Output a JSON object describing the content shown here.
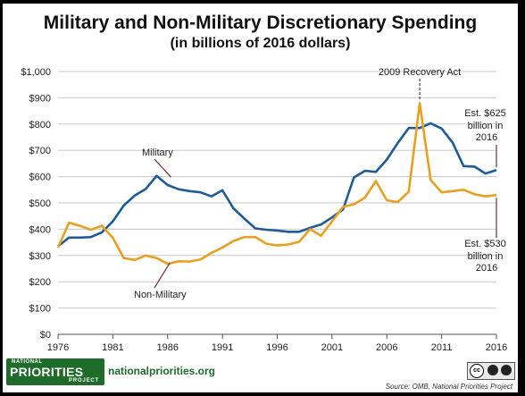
{
  "title": "Military and Non-Military Discretionary Spending",
  "subtitle": "(in billions of 2016 dollars)",
  "annotations": {
    "recovery_act": "2009 Recovery Act",
    "military_label": "Military",
    "nonmilitary_label": "Non-Military",
    "military_est": [
      "Est. $625",
      "billion in",
      "2016"
    ],
    "nonmilitary_est": [
      "Est. $530",
      "billion in",
      "2016"
    ]
  },
  "footer": {
    "logo_top": "NATIONAL",
    "logo_main": "PRIORITIES",
    "logo_bottom": "PROJECT",
    "site": "nationalpriorities.org",
    "license": "cc",
    "source": "Source: OMB, National Priorities Project"
  },
  "colors": {
    "military": "#1f5b99",
    "nonmilitary": "#e8a020",
    "grid": "#c8c8c8",
    "logo": "#1f6b2a"
  },
  "chart_data": {
    "type": "line",
    "title": "Military and Non-Military Discretionary Spending",
    "subtitle": "(in billions of 2016 dollars)",
    "xlim": [
      1976,
      2016
    ],
    "ylim": [
      0,
      1000
    ],
    "x_ticks": [
      1976,
      1981,
      1986,
      1991,
      1996,
      2001,
      2006,
      2011,
      2016
    ],
    "y_ticks": [
      0,
      100,
      200,
      300,
      400,
      500,
      600,
      700,
      800,
      900,
      1000
    ],
    "y_tick_labels": [
      "$0",
      "$100",
      "$200",
      "$300",
      "$400",
      "$500",
      "$600",
      "$700",
      "$800",
      "$900",
      "$1,000"
    ],
    "grid": "horizontal",
    "x": [
      1976,
      1977,
      1978,
      1979,
      1980,
      1981,
      1982,
      1983,
      1984,
      1985,
      1986,
      1987,
      1988,
      1989,
      1990,
      1991,
      1992,
      1993,
      1994,
      1995,
      1996,
      1997,
      1998,
      1999,
      2000,
      2001,
      2002,
      2003,
      2004,
      2005,
      2006,
      2007,
      2008,
      2009,
      2010,
      2011,
      2012,
      2013,
      2014,
      2015,
      2016
    ],
    "series": [
      {
        "name": "Military",
        "values": [
          335,
          368,
          368,
          370,
          388,
          430,
          490,
          528,
          553,
          603,
          568,
          552,
          545,
          540,
          525,
          548,
          480,
          440,
          403,
          398,
          395,
          390,
          390,
          405,
          418,
          445,
          475,
          597,
          622,
          618,
          665,
          728,
          785,
          785,
          803,
          783,
          730,
          640,
          638,
          612,
          625
        ]
      },
      {
        "name": "Non-Military",
        "values": [
          330,
          425,
          413,
          398,
          413,
          367,
          290,
          283,
          300,
          290,
          268,
          278,
          277,
          285,
          310,
          330,
          355,
          370,
          370,
          345,
          338,
          342,
          352,
          400,
          375,
          430,
          485,
          495,
          520,
          583,
          510,
          503,
          543,
          880,
          588,
          540,
          545,
          550,
          533,
          525,
          530
        ]
      }
    ]
  }
}
